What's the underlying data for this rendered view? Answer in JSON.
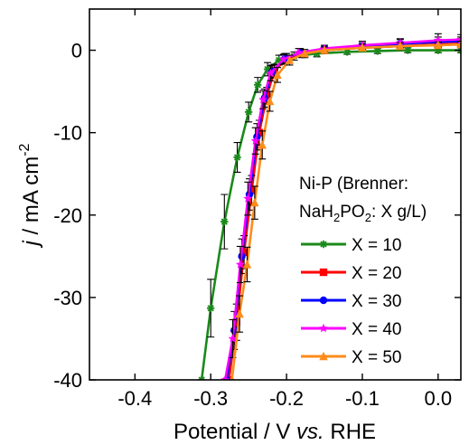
{
  "chart_data": {
    "type": "line",
    "xlabel": {
      "main": "Potential / V ",
      "italic": "vs.",
      "tail": " RHE"
    },
    "ylabel": {
      "italic": "j",
      "main": " / mA cm",
      "sup": "-2"
    },
    "xlim": [
      -0.46,
      0.03
    ],
    "ylim": [
      -40,
      5
    ],
    "x_ticks": [
      -0.4,
      -0.3,
      -0.2,
      -0.1,
      0.0
    ],
    "x_tick_labels": [
      "-0.4",
      "-0.3",
      "-0.2",
      "-0.1",
      "0.0"
    ],
    "y_ticks": [
      0,
      -10,
      -20,
      -30,
      -40
    ],
    "y_tick_labels": [
      "0",
      "-10",
      "-20",
      "-30",
      "-40"
    ],
    "legend": {
      "title_line1": "Ni-P (Brenner:",
      "title_line2_parts": [
        "NaH",
        "2",
        "PO",
        "2",
        ": X g/L)"
      ],
      "placement": "right"
    },
    "series": [
      {
        "name": "X = 10",
        "color": "#1a8a1a",
        "marker": "asterisk",
        "x": [
          -0.312,
          -0.3,
          -0.282,
          -0.265,
          -0.25,
          -0.238,
          -0.225,
          -0.21,
          -0.19,
          -0.16,
          -0.12,
          -0.08,
          -0.04,
          0.0,
          0.03
        ],
        "y": [
          -40,
          -31.3,
          -20.8,
          -13.0,
          -7.5,
          -4.2,
          -2.3,
          -1.2,
          -0.7,
          -0.4,
          -0.2,
          -0.1,
          0.0,
          0.0,
          0.0
        ],
        "err": [
          0,
          3.5,
          3.3,
          1.8,
          1.2,
          0.9,
          0.8,
          0.6,
          0.5,
          0.4,
          0.3,
          0.3,
          0.3,
          0.3,
          0.3
        ]
      },
      {
        "name": "X = 20",
        "color": "#ff0000",
        "marker": "square",
        "x": [
          -0.276,
          -0.266,
          -0.256,
          -0.246,
          -0.236,
          -0.226,
          -0.216,
          -0.2,
          -0.18,
          -0.15,
          -0.1,
          -0.05,
          0.0,
          0.03
        ],
        "y": [
          -40,
          -33.0,
          -24.5,
          -17.0,
          -10.0,
          -5.5,
          -2.5,
          -1.0,
          -0.4,
          0.0,
          0.3,
          0.5,
          0.7,
          0.8
        ],
        "err": [
          0,
          2.2,
          2.0,
          1.8,
          1.5,
          1.0,
          0.8,
          0.6,
          0.5,
          0.4,
          0.4,
          0.4,
          0.4,
          0.4
        ]
      },
      {
        "name": "X = 30",
        "color": "#0000ff",
        "marker": "circle",
        "x": [
          -0.279,
          -0.269,
          -0.259,
          -0.249,
          -0.239,
          -0.229,
          -0.219,
          -0.202,
          -0.182,
          -0.15,
          -0.1,
          -0.05,
          0.0,
          0.03
        ],
        "y": [
          -40,
          -34.0,
          -25.0,
          -17.5,
          -10.5,
          -5.8,
          -2.6,
          -1.0,
          -0.3,
          0.2,
          0.5,
          0.8,
          1.0,
          1.1
        ],
        "err": [
          0,
          2.3,
          2.1,
          1.9,
          1.6,
          1.1,
          0.8,
          0.6,
          0.5,
          0.4,
          0.4,
          0.5,
          0.6,
          0.5
        ]
      },
      {
        "name": "X = 40",
        "color": "#ff00ff",
        "marker": "star",
        "x": [
          -0.281,
          -0.271,
          -0.261,
          -0.251,
          -0.241,
          -0.231,
          -0.221,
          -0.204,
          -0.184,
          -0.15,
          -0.1,
          -0.05,
          0.0,
          0.03
        ],
        "y": [
          -40,
          -35.0,
          -26.0,
          -18.0,
          -11.0,
          -6.0,
          -2.8,
          -1.1,
          -0.3,
          0.2,
          0.6,
          0.9,
          1.2,
          1.3
        ],
        "err": [
          0,
          2.3,
          2.2,
          2.0,
          1.6,
          1.1,
          0.9,
          0.6,
          0.5,
          0.4,
          0.5,
          0.5,
          0.8,
          0.6
        ]
      },
      {
        "name": "X = 50",
        "color": "#ff8c1a",
        "marker": "triangle",
        "x": [
          -0.272,
          -0.262,
          -0.252,
          -0.242,
          -0.232,
          -0.222,
          -0.212,
          -0.196,
          -0.176,
          -0.15,
          -0.1,
          -0.05,
          0.0,
          0.03
        ],
        "y": [
          -40,
          -32.0,
          -26.0,
          -18.5,
          -11.5,
          -6.2,
          -3.0,
          -1.2,
          -0.4,
          0.0,
          0.3,
          0.5,
          0.6,
          0.7
        ],
        "err": [
          0,
          2.2,
          2.1,
          2.0,
          1.7,
          1.2,
          0.9,
          0.6,
          0.5,
          0.4,
          0.4,
          0.4,
          0.4,
          0.4
        ]
      }
    ]
  }
}
